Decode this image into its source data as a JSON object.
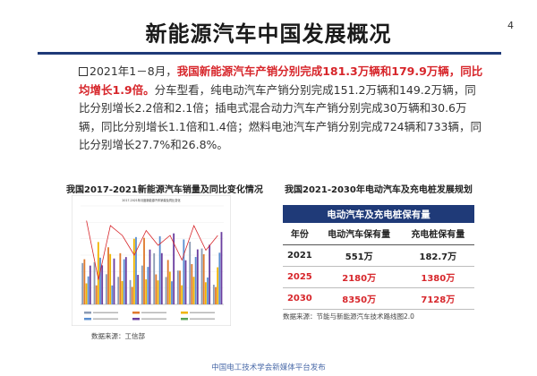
{
  "page_number": "4",
  "title": "新能源汽车中国发展概况",
  "intro": {
    "lead": "2021年1－8月，",
    "highlight": "我国新能源汽车产销分别完成181.3万辆和179.9万辆，同比均增长1.9倍。",
    "body": "分车型看，纯电动汽车产销分别完成151.2万辆和149.2万辆，同比分别增长2.2倍和2.1倍；插电式混合动力汽车产销分别完成30万辆和30.6万辆，同比分别增长1.1倍和1.4倍；燃料电池汽车产销分别完成724辆和733辆，同比分别增长27.7%和26.8%。"
  },
  "left_chart": {
    "heading": "我国2017-2021新能源汽车销量及同比变化情况",
    "inner_title": "2017-2021年月度新能源汽车销量及同比变化",
    "source": "数据来源：工信部"
  },
  "right_table": {
    "heading": "我国2021-2030年电动汽车及充电桩发展规划",
    "caption": "电动汽车及充电桩保有量",
    "columns": [
      "年份",
      "电动汽车保有量",
      "充电桩保有量"
    ],
    "rows": [
      {
        "year": "2021",
        "ev": "551万",
        "charger": "182.7万"
      },
      {
        "year": "2025",
        "ev": "2180万",
        "charger": "1380万"
      },
      {
        "year": "2030",
        "ev": "8350万",
        "charger": "7128万"
      }
    ],
    "source": "数据来源：节能与新能源汽车技术路线图2.0"
  },
  "footer": "中国电工技术学会新媒体平台发布",
  "colors": {
    "accent_blue": "#1f3a78",
    "highlight_red": "#d7262b",
    "series": [
      "#8b9bb4",
      "#e07a2e",
      "#f0b400",
      "#5b8fd1",
      "#6b3fa0",
      "#5aa357"
    ],
    "line": "#d7262b"
  }
}
